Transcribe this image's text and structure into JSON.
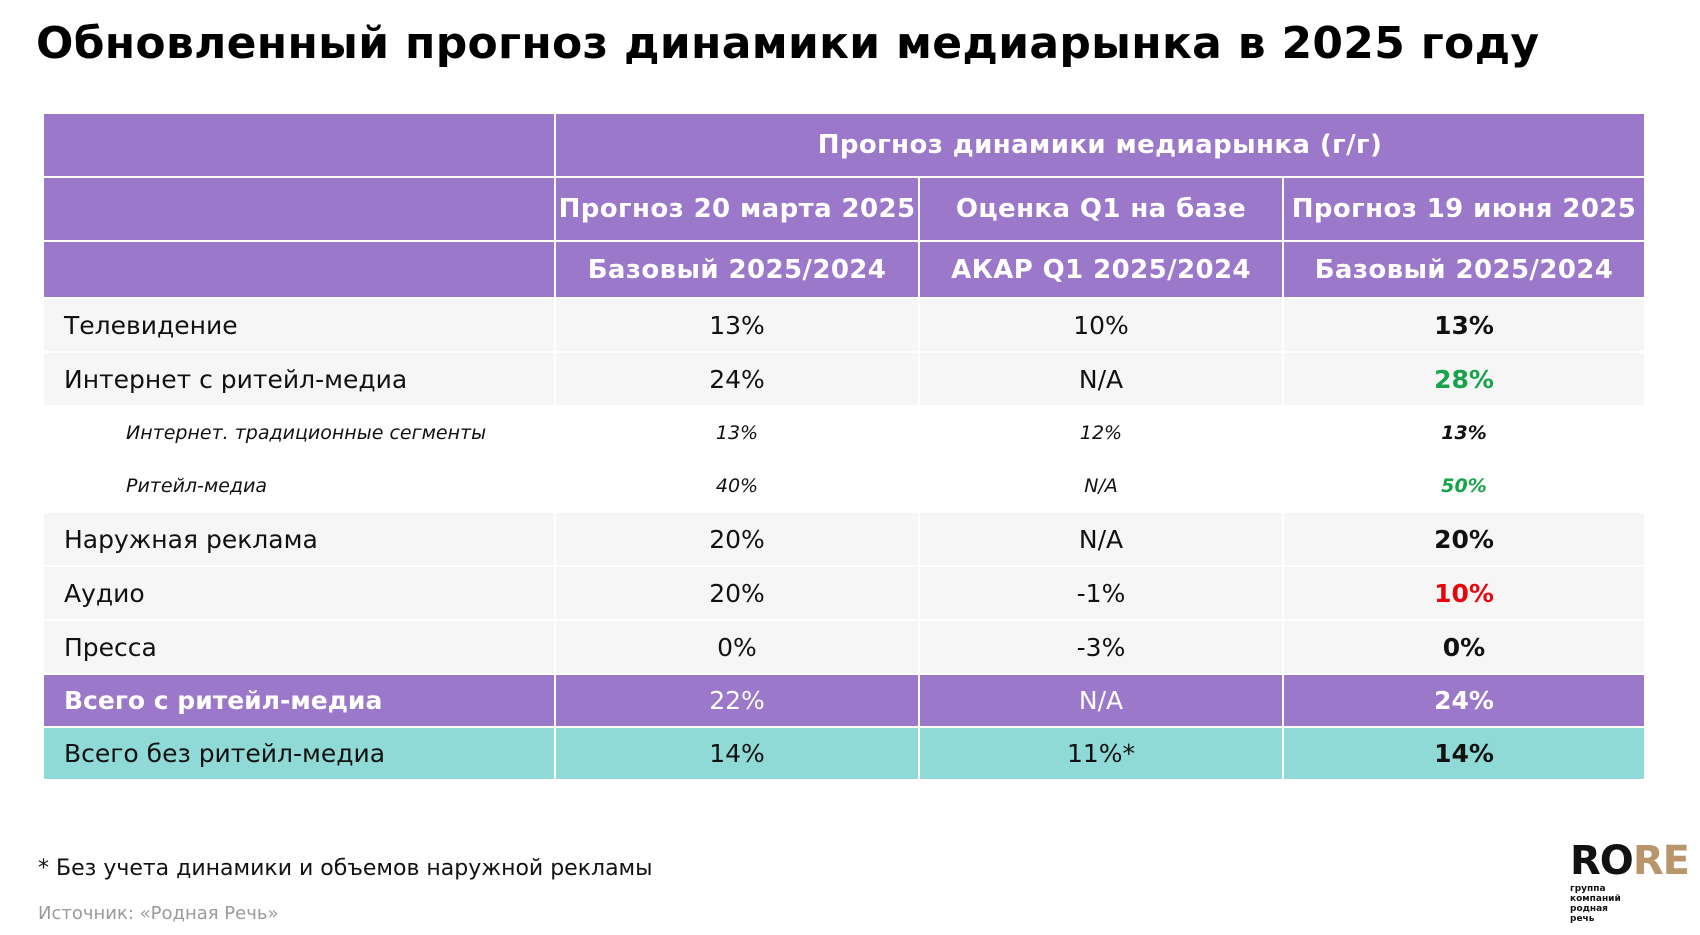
{
  "title": "Обновленный прогноз динамики медиарынка в 2025 году",
  "table": {
    "group_header": "Прогноз динамики медиарынка (г/г)",
    "columns": [
      {
        "title": "Прогноз 20 марта 2025",
        "subtitle": "Базовый 2025/2024"
      },
      {
        "title": "Оценка Q1 на базе",
        "subtitle": "АКАР Q1 2025/2024"
      },
      {
        "title": "Прогноз 19 июня 2025",
        "subtitle": "Базовый 2025/2024"
      }
    ],
    "rows": [
      {
        "label": "Телевидение",
        "values": [
          "13%",
          "10%",
          "13%"
        ],
        "level": "main",
        "highlight": "black"
      },
      {
        "label": "Интернет с ритейл-медиа",
        "values": [
          "24%",
          "N/A",
          "28%"
        ],
        "level": "main",
        "highlight": "green"
      },
      {
        "label": "Интернет. традиционные сегменты",
        "values": [
          "13%",
          "12%",
          "13%"
        ],
        "level": "sub",
        "highlight": "black"
      },
      {
        "label": "Ритейл-медиа",
        "values": [
          "40%",
          "N/A",
          "50%"
        ],
        "level": "sub",
        "highlight": "green"
      },
      {
        "label": "Наружная реклама",
        "values": [
          "20%",
          "N/A",
          "20%"
        ],
        "level": "main",
        "highlight": "black"
      },
      {
        "label": "Аудио",
        "values": [
          "20%",
          "-1%",
          "10%"
        ],
        "level": "main",
        "highlight": "red"
      },
      {
        "label": "Пресса",
        "values": [
          "0%",
          "-3%",
          "0%"
        ],
        "level": "main",
        "highlight": "black"
      }
    ],
    "totals": [
      {
        "label": "Всего с ритейл-медиа",
        "values": [
          "22%",
          "N/A",
          "24%"
        ],
        "style": "purple"
      },
      {
        "label": "Всего без ритейл-медиа",
        "values": [
          "14%",
          "11%*",
          "14%"
        ],
        "style": "teal"
      }
    ]
  },
  "footnote": "* Без учета динамики и объемов наружной рекламы",
  "source": "Источник: «Родная Речь»",
  "logo": {
    "word_left": "RO",
    "word_right": "RE",
    "subtitle_lines": [
      "группа",
      "компаний",
      "родная",
      "речь"
    ]
  },
  "colors": {
    "header_purple": "#9b78c9",
    "total_teal": "#8fd9d6",
    "increase_green": "#16a34a",
    "decrease_red": "#e8060a",
    "logo_gold": "#b8956a"
  }
}
